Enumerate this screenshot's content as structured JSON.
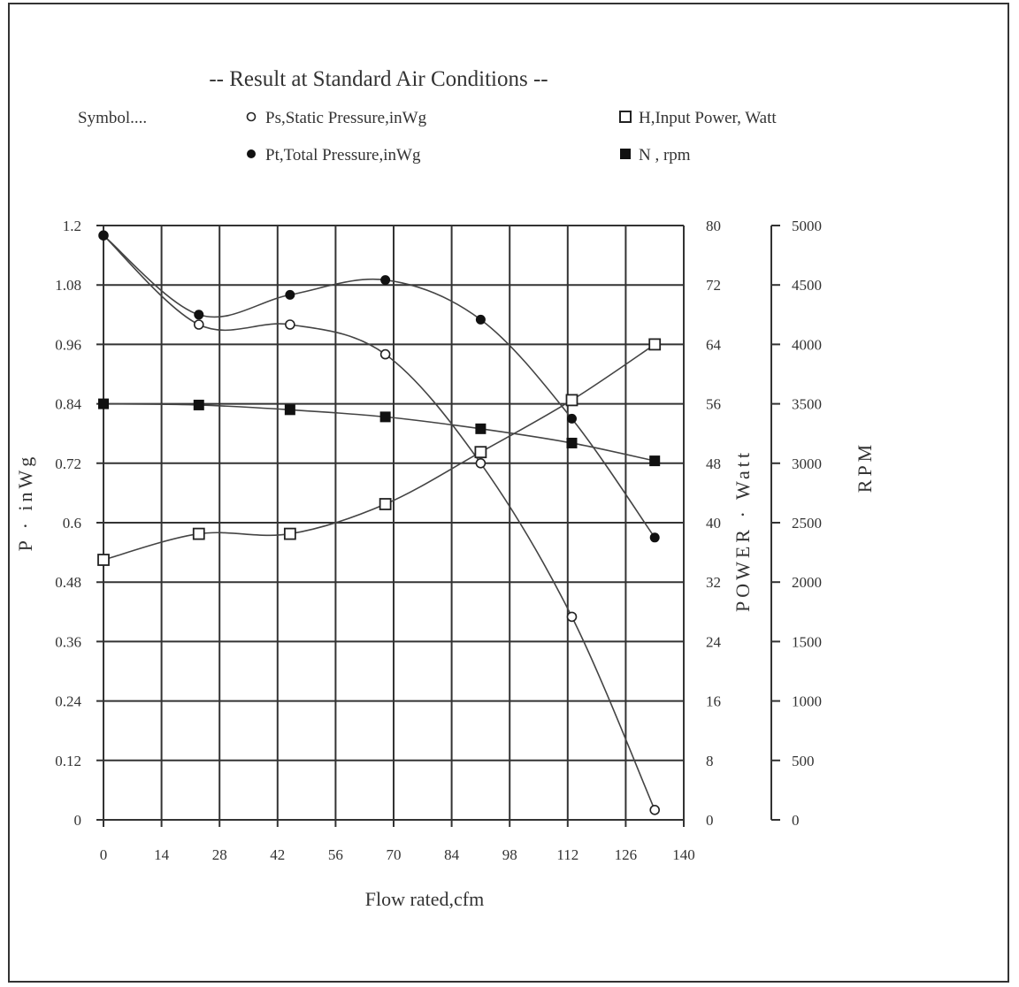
{
  "chart_data": {
    "type": "line",
    "title": "-- Result at Standard Air Conditions --",
    "legend_heading": "Symbol....",
    "legend": [
      {
        "key": "ps",
        "label": "Ps,Static Pressure,inWg",
        "marker": "open-circle"
      },
      {
        "key": "pt",
        "label": "Pt,Total Pressure,inWg",
        "marker": "filled-circle"
      },
      {
        "key": "h",
        "label": "H,Input Power, Watt",
        "marker": "open-square"
      },
      {
        "key": "n",
        "label": "N , rpm",
        "marker": "filled-square"
      }
    ],
    "xlabel": "Flow rated,cfm",
    "ylabel_left": "P · inWg",
    "ylabel_power": "POWER · Watt",
    "ylabel_rpm": "RPM",
    "xlim": [
      0,
      140
    ],
    "ylim_left": [
      0,
      1.2
    ],
    "ylim_power": [
      0,
      80
    ],
    "ylim_rpm": [
      0,
      5000
    ],
    "x_ticks": [
      "0",
      "14",
      "28",
      "42",
      "56",
      "70",
      "84",
      "98",
      "112",
      "126",
      "140"
    ],
    "y_left_ticks": [
      "0",
      "0.12",
      "0.24",
      "0.36",
      "0.48",
      "0.6",
      "0.72",
      "0.84",
      "0.96",
      "1.08",
      "1.2"
    ],
    "y_power_ticks": [
      "0",
      "8",
      "16",
      "24",
      "32",
      "40",
      "48",
      "56",
      "64",
      "72",
      "80"
    ],
    "y_rpm_ticks": [
      "0",
      "500",
      "1000",
      "1500",
      "2000",
      "2500",
      "3000",
      "3500",
      "4000",
      "4500",
      "5000"
    ],
    "grid": true,
    "legend_position": "top",
    "series": [
      {
        "key": "ps",
        "name": "Ps,Static Pressure,inWg",
        "axis": "left",
        "x": [
          0,
          23,
          45,
          68,
          91,
          113,
          133
        ],
        "y": [
          1.18,
          1.0,
          1.0,
          0.94,
          0.72,
          0.41,
          0.02
        ]
      },
      {
        "key": "pt",
        "name": "Pt,Total Pressure,inWg",
        "axis": "left",
        "x": [
          0,
          23,
          45,
          68,
          91,
          113,
          133
        ],
        "y": [
          1.18,
          1.02,
          1.06,
          1.09,
          1.01,
          0.81,
          0.57
        ]
      },
      {
        "key": "h",
        "name": "H,Input Power, Watt",
        "axis": "power",
        "x": [
          0,
          23,
          45,
          68,
          91,
          113,
          133
        ],
        "y": [
          35,
          38.5,
          38.5,
          42.5,
          49.5,
          56.5,
          64
        ]
      },
      {
        "key": "n",
        "name": "N , rpm",
        "axis": "rpm",
        "x": [
          0,
          23,
          45,
          68,
          91,
          113,
          133
        ],
        "y": [
          3500,
          3490,
          3450,
          3390,
          3290,
          3170,
          3020
        ]
      }
    ]
  }
}
